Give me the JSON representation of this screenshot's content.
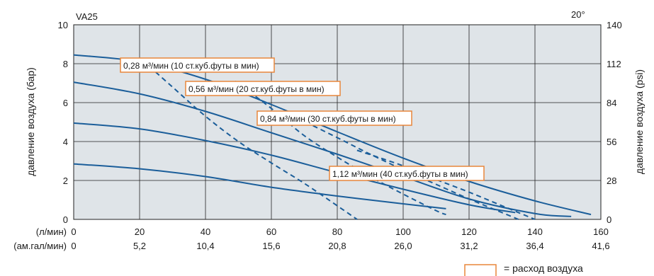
{
  "chart_data": {
    "type": "line",
    "pump_model": "VA25",
    "temperature_note": "20°",
    "ylabel_left": "давление воздуха (бар)",
    "ylabel_right": "давление воздуха (psi)",
    "xlabel_lpm": "(л/мин)",
    "xlabel_gpm": "(ам.гал/мин)",
    "xlim": [
      0,
      160
    ],
    "ylim": [
      0,
      10
    ],
    "grid": true,
    "x_ticks_lpm": [
      "0",
      "20",
      "40",
      "60",
      "80",
      "100",
      "120",
      "140",
      "160"
    ],
    "x_ticks_gpm": [
      "0",
      "5,2",
      "10,4",
      "15,6",
      "20,8",
      "26,0",
      "31,2",
      "36,4",
      "41,6"
    ],
    "y_ticks_left": [
      "0",
      "2",
      "4",
      "6",
      "8",
      "10"
    ],
    "y_ticks_right": [
      "0",
      "28",
      "56",
      "84",
      "112",
      "140"
    ],
    "pressure_curves": [
      {
        "x": [
          0,
          20,
          40,
          60,
          80,
          100,
          113
        ],
        "y": [
          2.85,
          2.6,
          2.2,
          1.65,
          1.2,
          0.8,
          0.55
        ]
      },
      {
        "x": [
          0,
          20,
          40,
          60,
          80,
          100,
          120,
          134
        ],
        "y": [
          4.95,
          4.65,
          4.05,
          3.3,
          2.4,
          1.55,
          0.75,
          0.35
        ]
      },
      {
        "x": [
          0,
          20,
          40,
          60,
          80,
          100,
          120,
          140,
          151
        ],
        "y": [
          7.05,
          6.45,
          5.55,
          4.45,
          3.35,
          2.2,
          1.05,
          0.3,
          0.15
        ]
      },
      {
        "x": [
          0,
          20,
          40,
          60,
          80,
          100,
          120,
          140,
          157
        ],
        "y": [
          8.45,
          8.1,
          7.2,
          5.9,
          4.5,
          3.15,
          1.95,
          0.95,
          0.25
        ]
      }
    ],
    "air_consumption_curves": [
      {
        "label": "0,28 м³/мин (10 ст.куб.футы в мин)",
        "x": [
          21,
          30,
          40,
          50,
          60,
          70,
          80,
          86
        ],
        "y": [
          8.15,
          6.8,
          5.3,
          4.0,
          2.9,
          1.85,
          0.7,
          0.0
        ]
      },
      {
        "label": "0,56 м³/мин (20 ст.куб.футы в мин)",
        "x": [
          49,
          60,
          70,
          80,
          90,
          100,
          110,
          113
        ],
        "y": [
          7.1,
          5.7,
          4.3,
          3.2,
          2.2,
          1.3,
          0.45,
          0.25
        ]
      },
      {
        "label": "0,84 м³/мин (30 ст.куб.футы в мин)",
        "x": [
          68,
          80,
          90,
          100,
          110,
          120,
          130,
          135
        ],
        "y": [
          5.2,
          4.2,
          3.35,
          2.55,
          1.8,
          1.05,
          0.35,
          0.0
        ]
      },
      {
        "label": "1,12 м³/мин (40 ст.куб.футы в мин)",
        "x": [
          86,
          100,
          110,
          120,
          130,
          140
        ],
        "y": [
          3.55,
          2.75,
          2.05,
          1.4,
          0.7,
          0.0
        ]
      }
    ],
    "legend_text": "= расход воздуха",
    "colors": {
      "curve": "#1b5e9a",
      "grid": "#222222",
      "plot_bg": "#dfe4e8",
      "label_border": "#e8863a"
    }
  }
}
